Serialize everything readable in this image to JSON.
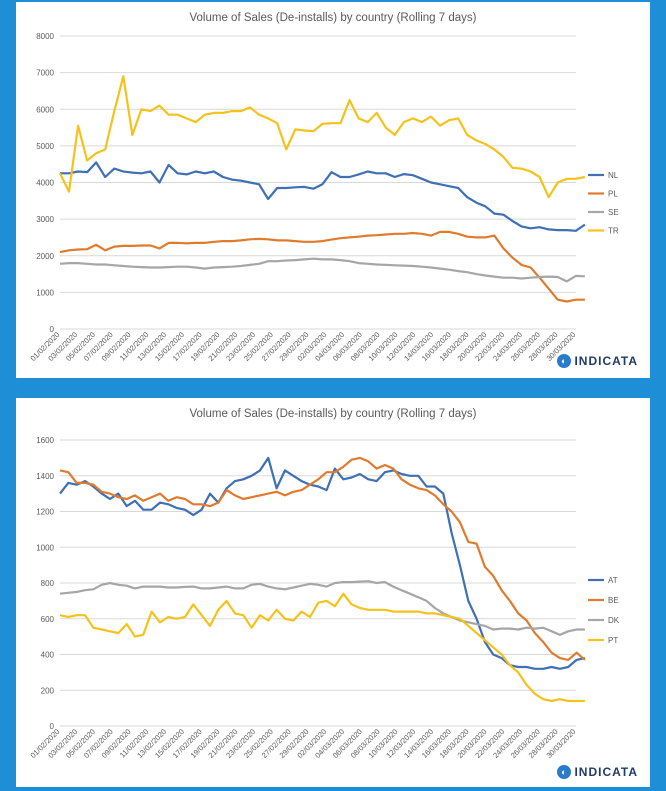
{
  "chart_data": [
    {
      "type": "line",
      "title": "Volume of Sales (De-installs) by country (Rolling 7 days)",
      "xlabel": "",
      "ylabel": "",
      "ylim": [
        0,
        8000
      ],
      "yticks": [
        0,
        1000,
        2000,
        3000,
        4000,
        5000,
        6000,
        7000,
        8000
      ],
      "x_start": "2020-02-01",
      "x_tick_labels": [
        "01/02/2020",
        "03/02/2020",
        "05/02/2020",
        "07/02/2020",
        "09/02/2020",
        "11/02/2020",
        "13/02/2020",
        "15/02/2020",
        "17/02/2020",
        "19/02/2020",
        "21/02/2020",
        "23/02/2020",
        "25/02/2020",
        "27/02/2020",
        "29/02/2020",
        "02/03/2020",
        "04/03/2020",
        "06/03/2020",
        "08/03/2020",
        "10/03/2020",
        "12/03/2020",
        "14/03/2020",
        "16/03/2020",
        "18/03/2020",
        "20/03/2020",
        "22/03/2020",
        "24/03/2020",
        "26/03/2020",
        "28/03/2020",
        "30/03/2020"
      ],
      "legend_position": "right",
      "grid": true,
      "series": [
        {
          "name": "NL",
          "color": "#3f6fb4",
          "values": [
            4250,
            4250,
            4300,
            4280,
            4550,
            4150,
            4380,
            4300,
            4270,
            4250,
            4300,
            4000,
            4480,
            4250,
            4220,
            4300,
            4250,
            4300,
            4150,
            4080,
            4050,
            4000,
            3950,
            3550,
            3850,
            3850,
            3870,
            3880,
            3830,
            3950,
            4280,
            4150,
            4150,
            4220,
            4300,
            4250,
            4250,
            4150,
            4230,
            4200,
            4100,
            4000,
            3950,
            3900,
            3850,
            3600,
            3450,
            3350,
            3150,
            3120,
            2950,
            2800,
            2750,
            2780,
            2720,
            2700,
            2700,
            2680,
            2850
          ]
        },
        {
          "name": "PL",
          "color": "#e07b2e",
          "values": [
            2100,
            2150,
            2170,
            2180,
            2300,
            2150,
            2250,
            2270,
            2270,
            2280,
            2280,
            2200,
            2350,
            2350,
            2340,
            2350,
            2350,
            2380,
            2400,
            2400,
            2420,
            2450,
            2460,
            2450,
            2420,
            2420,
            2400,
            2380,
            2380,
            2400,
            2440,
            2480,
            2500,
            2520,
            2550,
            2560,
            2580,
            2600,
            2600,
            2620,
            2600,
            2550,
            2650,
            2650,
            2600,
            2520,
            2500,
            2500,
            2550,
            2200,
            1950,
            1750,
            1680,
            1400,
            1100,
            800,
            750,
            800,
            800
          ]
        },
        {
          "name": "SE",
          "color": "#a6a6a6",
          "values": [
            1780,
            1800,
            1800,
            1780,
            1760,
            1760,
            1740,
            1720,
            1700,
            1690,
            1680,
            1680,
            1690,
            1700,
            1700,
            1680,
            1650,
            1680,
            1690,
            1700,
            1720,
            1750,
            1780,
            1850,
            1850,
            1870,
            1880,
            1900,
            1920,
            1900,
            1900,
            1880,
            1850,
            1800,
            1780,
            1760,
            1750,
            1740,
            1730,
            1720,
            1700,
            1680,
            1650,
            1620,
            1580,
            1550,
            1500,
            1460,
            1430,
            1400,
            1400,
            1380,
            1400,
            1420,
            1430,
            1420,
            1300,
            1450,
            1440
          ]
        },
        {
          "name": "TR",
          "color": "#f5c21c",
          "values": [
            4250,
            3750,
            5550,
            4600,
            4800,
            4900,
            5950,
            6900,
            5300,
            6000,
            5950,
            6100,
            5850,
            5850,
            5750,
            5650,
            5850,
            5900,
            5900,
            5950,
            5950,
            6050,
            5850,
            5750,
            5620,
            4900,
            5450,
            5420,
            5400,
            5600,
            5620,
            5620,
            6250,
            5750,
            5650,
            5900,
            5500,
            5300,
            5650,
            5750,
            5650,
            5800,
            5550,
            5700,
            5750,
            5300,
            5150,
            5050,
            4900,
            4700,
            4400,
            4380,
            4300,
            4150,
            3600,
            4000,
            4100,
            4100,
            4150
          ]
        }
      ]
    },
    {
      "type": "line",
      "title": "Volume of Sales (De-installs) by country (Rolling 7 days)",
      "xlabel": "",
      "ylabel": "",
      "ylim": [
        0,
        1600
      ],
      "yticks": [
        0,
        200,
        400,
        600,
        800,
        1000,
        1200,
        1400,
        1600
      ],
      "x_start": "2020-02-01",
      "x_tick_labels": [
        "01/02/2020",
        "03/02/2020",
        "05/02/2020",
        "07/02/2020",
        "09/02/2020",
        "11/02/2020",
        "13/02/2020",
        "15/02/2020",
        "17/02/2020",
        "19/02/2020",
        "21/02/2020",
        "23/02/2020",
        "25/02/2020",
        "27/02/2020",
        "29/02/2020",
        "02/03/2020",
        "04/03/2020",
        "06/03/2020",
        "08/03/2020",
        "10/03/2020",
        "12/03/2020",
        "14/03/2020",
        "16/03/2020",
        "18/03/2020",
        "20/03/2020",
        "22/03/2020",
        "24/03/2020",
        "26/03/2020",
        "28/03/2020",
        "30/03/2020"
      ],
      "legend_position": "right",
      "grid": true,
      "series": [
        {
          "name": "AT",
          "color": "#3f6fb4",
          "values": [
            1300,
            1360,
            1350,
            1370,
            1340,
            1300,
            1270,
            1300,
            1230,
            1260,
            1210,
            1210,
            1250,
            1240,
            1220,
            1210,
            1180,
            1210,
            1300,
            1250,
            1330,
            1370,
            1380,
            1400,
            1430,
            1500,
            1330,
            1430,
            1400,
            1370,
            1350,
            1340,
            1320,
            1440,
            1380,
            1390,
            1410,
            1380,
            1370,
            1420,
            1430,
            1410,
            1400,
            1400,
            1340,
            1340,
            1300,
            1080,
            900,
            700,
            600,
            470,
            400,
            380,
            340,
            330,
            330,
            320,
            320,
            330,
            320,
            330,
            370,
            380
          ]
        },
        {
          "name": "BE",
          "color": "#e07b2e",
          "values": [
            1430,
            1420,
            1360,
            1360,
            1350,
            1310,
            1300,
            1280,
            1270,
            1290,
            1260,
            1280,
            1300,
            1260,
            1280,
            1270,
            1240,
            1240,
            1230,
            1250,
            1320,
            1290,
            1270,
            1280,
            1290,
            1300,
            1310,
            1290,
            1310,
            1320,
            1350,
            1380,
            1420,
            1420,
            1450,
            1490,
            1500,
            1480,
            1440,
            1460,
            1440,
            1380,
            1350,
            1330,
            1320,
            1290,
            1240,
            1200,
            1140,
            1030,
            1020,
            890,
            840,
            760,
            700,
            630,
            590,
            520,
            470,
            410,
            380,
            370,
            410,
            370
          ]
        },
        {
          "name": "DK",
          "color": "#a6a6a6",
          "values": [
            740,
            745,
            750,
            760,
            765,
            790,
            800,
            790,
            785,
            770,
            780,
            780,
            780,
            775,
            775,
            778,
            780,
            770,
            770,
            775,
            780,
            770,
            770,
            790,
            795,
            780,
            770,
            765,
            775,
            785,
            795,
            790,
            780,
            800,
            805,
            805,
            808,
            810,
            800,
            805,
            780,
            760,
            740,
            720,
            700,
            660,
            630,
            610,
            590,
            580,
            570,
            560,
            540,
            545,
            545,
            540,
            550,
            545,
            550,
            530,
            510,
            530,
            540,
            540
          ]
        },
        {
          "name": "PT",
          "color": "#f5c21c",
          "values": [
            620,
            610,
            620,
            620,
            550,
            540,
            530,
            520,
            570,
            500,
            510,
            640,
            580,
            610,
            600,
            610,
            680,
            620,
            560,
            650,
            700,
            630,
            620,
            550,
            620,
            590,
            650,
            600,
            590,
            640,
            610,
            690,
            700,
            670,
            740,
            680,
            660,
            650,
            650,
            650,
            640,
            640,
            640,
            640,
            630,
            630,
            620,
            610,
            600,
            560,
            520,
            480,
            440,
            400,
            340,
            300,
            230,
            180,
            150,
            140,
            150,
            140,
            140,
            140
          ]
        }
      ]
    }
  ],
  "logo": {
    "text": "INDICATA"
  }
}
